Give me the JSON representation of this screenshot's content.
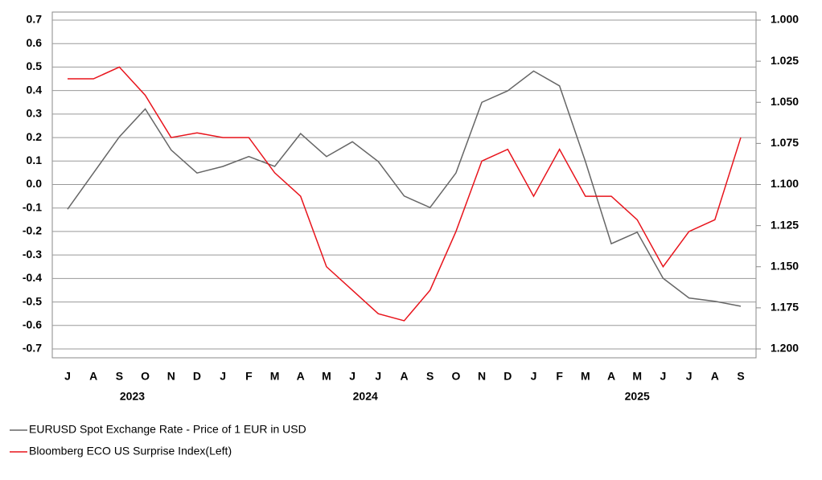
{
  "chart_data": {
    "type": "line",
    "categories": [
      "J",
      "A",
      "S",
      "O",
      "N",
      "D",
      "J",
      "F",
      "M",
      "A",
      "M",
      "J",
      "J",
      "A",
      "S",
      "O",
      "N",
      "D",
      "J",
      "F",
      "M",
      "A",
      "M",
      "J",
      "J",
      "A",
      "S"
    ],
    "years": [
      {
        "label": "2023",
        "from": 0,
        "to": 5
      },
      {
        "label": "2024",
        "from": 6,
        "to": 17
      },
      {
        "label": "2025",
        "from": 18,
        "to": 26
      }
    ],
    "series": [
      {
        "name": "EURUSD Spot Exchange Rate - Price of 1 EUR in USD",
        "color": "#666666",
        "axis": "y2",
        "values": [
          1.115,
          1.093,
          1.071,
          1.054,
          1.079,
          1.093,
          1.089,
          1.083,
          1.089,
          1.069,
          1.083,
          1.074,
          1.086,
          1.107,
          1.114,
          1.093,
          1.05,
          1.043,
          1.031,
          1.04,
          1.086,
          1.136,
          1.129,
          1.157,
          1.169,
          1.171,
          1.174
        ]
      },
      {
        "name": "Bloomberg ECO US Surprise Index(Left)",
        "color": "#e8141c",
        "values": [
          0.45,
          0.45,
          0.5,
          0.38,
          0.2,
          0.22,
          0.2,
          0.2,
          0.05,
          -0.05,
          -0.35,
          -0.45,
          -0.55,
          -0.58,
          -0.45,
          -0.2,
          0.1,
          0.15,
          -0.05,
          0.15,
          -0.05,
          -0.05,
          -0.15,
          -0.35,
          -0.2,
          -0.15,
          0.2
        ]
      }
    ],
    "ylim": [
      -0.7,
      0.7
    ],
    "yticks": [
      -0.7,
      -0.6,
      -0.5,
      -0.4,
      -0.3,
      -0.2,
      -0.1,
      {
        "value": 0,
        "label": "0.0"
      },
      0.1,
      0.2,
      0.3,
      0.4,
      0.5,
      0.6,
      0.7
    ],
    "y2lim": [
      1.2,
      1.0
    ],
    "y2ticks": [
      {
        "value": 1.2,
        "label": "1.200"
      },
      1.175,
      {
        "value": 1.15,
        "label": "1.150"
      },
      1.125,
      {
        "value": 1.1,
        "label": "1.100"
      },
      1.075,
      {
        "value": 1.05,
        "label": "1.050"
      },
      1.025,
      {
        "value": 1.0,
        "label": "1.000"
      }
    ],
    "grid": true
  }
}
